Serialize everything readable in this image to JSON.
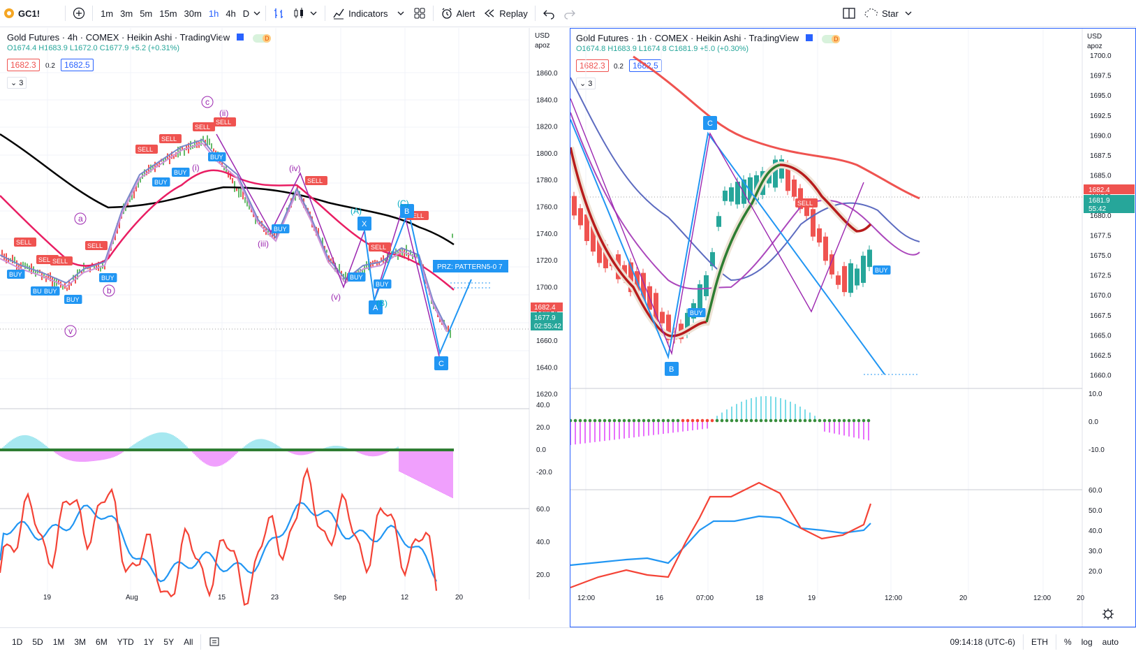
{
  "topbar": {
    "symbol": "GC1!",
    "timeframes": [
      "1m",
      "3m",
      "5m",
      "15m",
      "30m",
      "1h",
      "4h",
      "D"
    ],
    "active_timeframe": "1h",
    "indicators_label": "Indicators",
    "alert_label": "Alert",
    "replay_label": "Replay",
    "star_label": "Star"
  },
  "left_chart": {
    "title": "Gold Futures · 4h · COMEX · Heikin Ashi · TradingView",
    "ohlc": "O1674.4 H1683.9 L1672.0 C1677.9 +5.2 (+0.31%)",
    "bid": "1682.3",
    "spread": "0.2",
    "ask": "1682.5",
    "study_count": "3",
    "currency": "USD",
    "scale_mode": "apoz",
    "price_ticks": [
      "1860.0",
      "1840.0",
      "1820.0",
      "1800.0",
      "1780.0",
      "1760.0",
      "1740.0",
      "1720.0",
      "1700.0",
      "1680.0",
      "1660.0",
      "1640.0",
      "1620.0"
    ],
    "last_price_red": "1682.4",
    "last_price_green": "1677.9",
    "countdown": "02:55:42",
    "macd_ticks": [
      "40.0",
      "20.0",
      "0.0",
      "-20.0"
    ],
    "rsi_ticks": [
      "60.0",
      "40.0",
      "20.0"
    ],
    "time_ticks": [
      "19",
      "Aug",
      "15",
      "23",
      "Sep",
      "12",
      "20"
    ],
    "prz_label": "PRZ: PATTERN5-0 7",
    "wave_labels": [
      "a",
      "b",
      "c",
      "(i)",
      "(ii)",
      "(iii)",
      "(iv)",
      "(v)",
      "v",
      "(A)",
      "(B)",
      "(C)"
    ],
    "pattern_labels": [
      "X",
      "A",
      "B",
      "C"
    ],
    "signal_buy": "BUY",
    "signal_sell": "SELL"
  },
  "right_chart": {
    "title": "Gold Futures · 1h · COMEX · Heikin Ashi · TradingView",
    "ohlc": "O1674.8 H1683.9 L1674.8 C1681.9 +5.0 (+0.30%)",
    "bid": "1682.3",
    "spread": "0.2",
    "ask": "1682.5",
    "study_count": "3",
    "currency": "USD",
    "scale_mode": "apoz",
    "price_ticks": [
      "1700.0",
      "1697.5",
      "1695.0",
      "1692.5",
      "1690.0",
      "1687.5",
      "1685.0",
      "1682.5",
      "1680.0",
      "1677.5",
      "1675.0",
      "1672.5",
      "1670.0",
      "1667.5",
      "1665.0",
      "1662.5",
      "1660.0"
    ],
    "last_price_red": "1682.4",
    "last_price_green": "1681.9",
    "countdown": "55:42",
    "macd_ticks": [
      "10.0",
      "0.0",
      "-10.0"
    ],
    "rsi_ticks": [
      "60.0",
      "50.0",
      "40.0",
      "30.0",
      "20.0"
    ],
    "time_ticks": [
      "12:00",
      "16",
      "07:00",
      "18",
      "19",
      "12:00",
      "20",
      "12:00",
      "20"
    ],
    "pattern_labels": [
      "B",
      "C"
    ],
    "signal_buy": "BUY",
    "signal_sell": "SELL"
  },
  "bottombar": {
    "ranges": [
      "1D",
      "5D",
      "1M",
      "3M",
      "6M",
      "YTD",
      "1Y",
      "5Y",
      "All"
    ],
    "clock": "09:14:18 (UTC-6)",
    "session": "ETH",
    "percent": "%",
    "log": "log",
    "auto": "auto"
  },
  "colors": {
    "accent": "#2962ff",
    "up": "#26a69a",
    "down": "#ef5350",
    "sell_tag": "#ef5350",
    "buy_tag": "#2196f3"
  }
}
